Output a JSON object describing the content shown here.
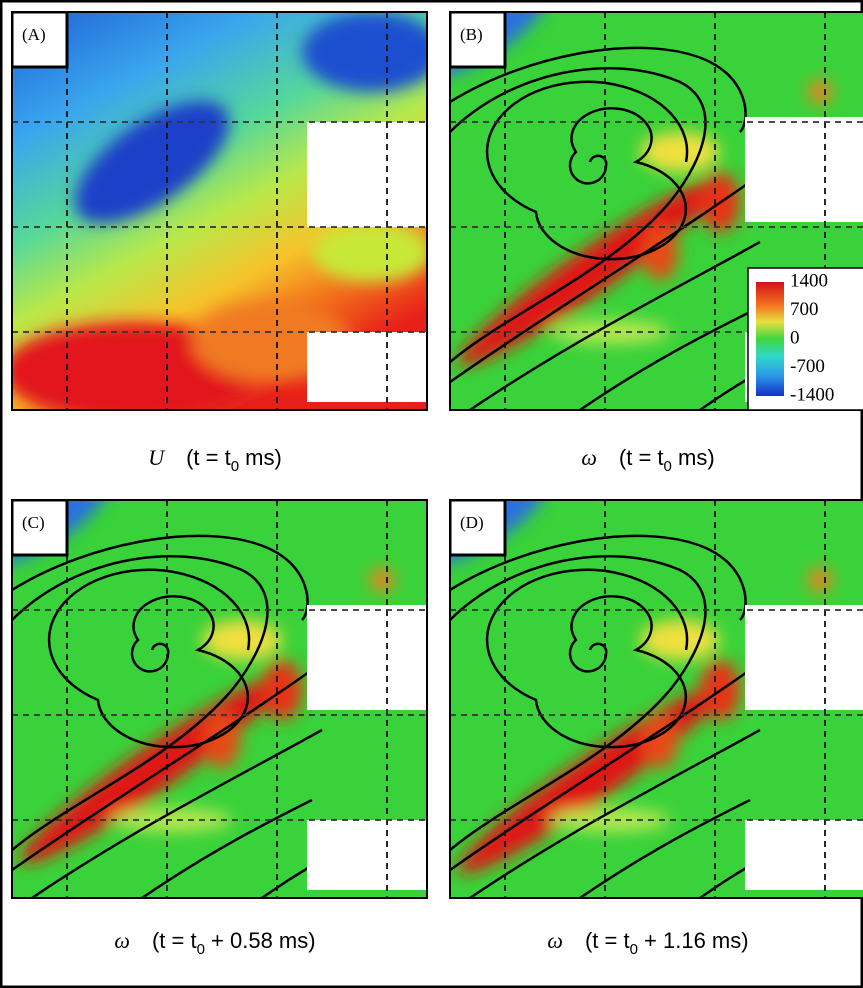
{
  "panels": [
    {
      "label": "(A)",
      "caption": {
        "symbol": "U",
        "prefix": "(t = t",
        "subscript": "0",
        "suffix": " ms)"
      }
    },
    {
      "label": "(B)",
      "caption": {
        "symbol": "ω",
        "prefix": "(t = t",
        "subscript": "0",
        "suffix": " ms)"
      }
    },
    {
      "label": "(C)",
      "caption": {
        "symbol": "ω",
        "prefix": "(t = t",
        "subscript": "0",
        "suffix": " + 0.58 ms)"
      }
    },
    {
      "label": "(D)",
      "caption": {
        "symbol": "ω",
        "prefix": "(t = t",
        "subscript": "0",
        "suffix": " + 1.16 ms)"
      }
    }
  ],
  "colorbar": {
    "ticks": [
      1400,
      700,
      0,
      -700,
      -1400
    ]
  }
}
